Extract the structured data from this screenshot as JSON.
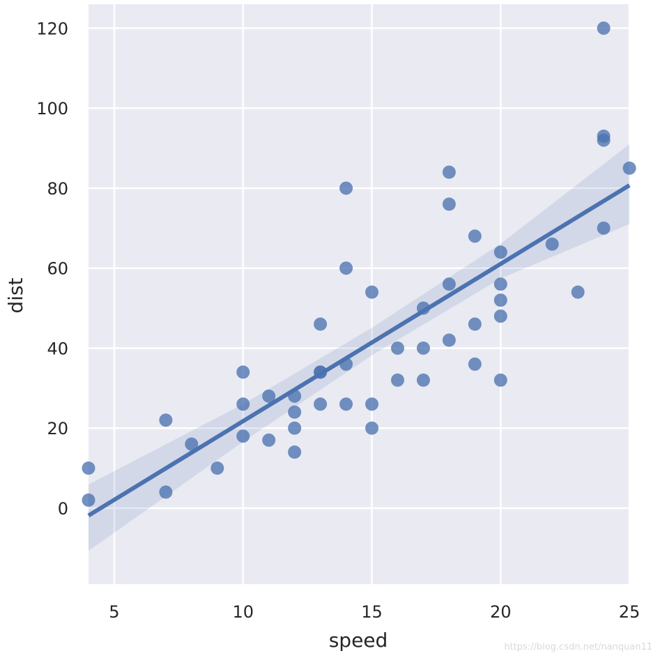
{
  "chart_data": {
    "type": "scatter",
    "title": "",
    "xlabel": "speed",
    "ylabel": "dist",
    "xlim": [
      4,
      25
    ],
    "ylim": [
      -19,
      126
    ],
    "xticks": [
      5,
      10,
      15,
      20,
      25
    ],
    "yticks": [
      0,
      20,
      40,
      60,
      80,
      100,
      120
    ],
    "xtick_labels": [
      "5",
      "10",
      "15",
      "20",
      "25"
    ],
    "ytick_labels": [
      "0",
      "20",
      "40",
      "60",
      "80",
      "100",
      "120"
    ],
    "grid": true,
    "points": [
      [
        4,
        2
      ],
      [
        4,
        10
      ],
      [
        7,
        4
      ],
      [
        7,
        22
      ],
      [
        8,
        16
      ],
      [
        9,
        10
      ],
      [
        10,
        18
      ],
      [
        10,
        26
      ],
      [
        10,
        34
      ],
      [
        11,
        17
      ],
      [
        11,
        28
      ],
      [
        12,
        14
      ],
      [
        12,
        20
      ],
      [
        12,
        24
      ],
      [
        12,
        28
      ],
      [
        13,
        26
      ],
      [
        13,
        34
      ],
      [
        13,
        34
      ],
      [
        13,
        46
      ],
      [
        14,
        26
      ],
      [
        14,
        36
      ],
      [
        14,
        60
      ],
      [
        14,
        80
      ],
      [
        15,
        20
      ],
      [
        15,
        26
      ],
      [
        15,
        54
      ],
      [
        16,
        32
      ],
      [
        16,
        40
      ],
      [
        17,
        32
      ],
      [
        17,
        40
      ],
      [
        17,
        50
      ],
      [
        18,
        42
      ],
      [
        18,
        56
      ],
      [
        18,
        76
      ],
      [
        18,
        84
      ],
      [
        19,
        36
      ],
      [
        19,
        46
      ],
      [
        19,
        68
      ],
      [
        20,
        32
      ],
      [
        20,
        48
      ],
      [
        20,
        52
      ],
      [
        20,
        56
      ],
      [
        20,
        64
      ],
      [
        22,
        66
      ],
      [
        23,
        54
      ],
      [
        24,
        70
      ],
      [
        24,
        92
      ],
      [
        24,
        93
      ],
      [
        24,
        120
      ],
      [
        25,
        85
      ]
    ],
    "regression": {
      "slope": 3.932,
      "intercept": -17.579
    },
    "confidence_band": [
      {
        "x": 4,
        "lower": -10.7,
        "upper": 5.9
      },
      {
        "x": 10,
        "lower": 16.6,
        "upper": 26.0
      },
      {
        "x": 15,
        "lower": 38.2,
        "upper": 45.1
      },
      {
        "x": 20,
        "lower": 57.4,
        "upper": 66.1
      },
      {
        "x": 25,
        "lower": 71.0,
        "upper": 91.0
      }
    ],
    "colors": {
      "plot_background": "#eaeaf2",
      "grid": "#ffffff",
      "point": "#4c72b0",
      "line": "#4c72b0",
      "band": "#4c72b0"
    }
  },
  "watermark": "https://blog.csdn.net/nanquan11"
}
